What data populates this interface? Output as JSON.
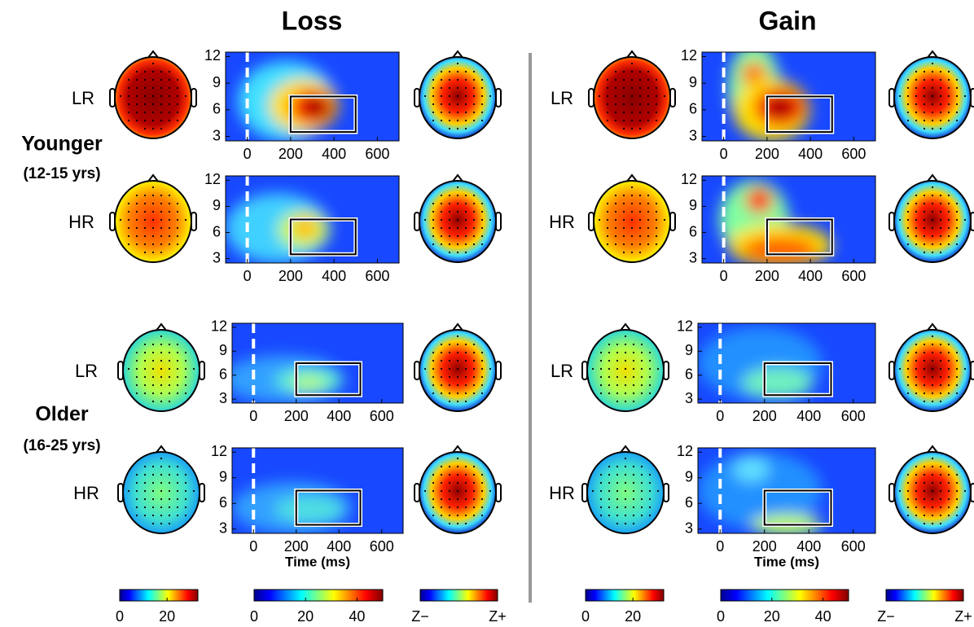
{
  "columns": [
    {
      "title": "Loss"
    },
    {
      "title": "Gain"
    }
  ],
  "groups": [
    {
      "label": "Younger",
      "age": "(12-15 yrs)"
    },
    {
      "label": "Older",
      "age": "(16-25 yrs)"
    }
  ],
  "conditions": [
    "LR",
    "HR"
  ],
  "tf_axes": {
    "xlim": [
      -100,
      700
    ],
    "xticks": [
      0,
      200,
      400,
      600
    ],
    "ylim": [
      2.5,
      12.5
    ],
    "yticks": [
      12,
      9,
      6,
      3
    ],
    "xlabel": "Time (ms)"
  },
  "colorbars": [
    {
      "lim": [
        0,
        33
      ],
      "ticks": [
        0,
        20
      ]
    },
    {
      "lim": [
        0,
        50
      ],
      "ticks": [
        0,
        20,
        40
      ]
    },
    {
      "labels": [
        "Z−",
        "Z+"
      ]
    }
  ]
}
